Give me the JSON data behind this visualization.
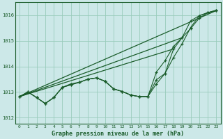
{
  "title": "Graphe pression niveau de la mer (hPa)",
  "background_color": "#cce8e8",
  "grid_color": "#99ccbb",
  "line_color": "#1a5c2a",
  "marker_color": "#1a5c2a",
  "xlim": [
    -0.5,
    23.5
  ],
  "ylim": [
    1011.75,
    1016.5
  ],
  "yticks": [
    1012,
    1013,
    1014,
    1015,
    1016
  ],
  "xticks": [
    0,
    1,
    2,
    3,
    4,
    5,
    6,
    7,
    8,
    9,
    10,
    11,
    12,
    13,
    14,
    15,
    16,
    17,
    18,
    19,
    20,
    21,
    22,
    23
  ],
  "series_with_markers": [
    [
      1012.82,
      1013.0,
      1012.78,
      1012.55,
      1012.78,
      1013.18,
      1013.28,
      1013.38,
      1013.5,
      1013.55,
      1013.42,
      1013.12,
      1013.02,
      1012.88,
      1012.82,
      1012.82,
      1013.32,
      1013.72,
      1014.35,
      1014.88,
      1015.52,
      1015.98,
      1016.1,
      1016.2
    ],
    [
      1012.82,
      1013.0,
      1012.78,
      1012.55,
      1012.78,
      1013.18,
      1013.32,
      1013.38,
      1013.5,
      1013.55,
      1013.42,
      1013.12,
      1013.02,
      1012.88,
      1012.82,
      1012.82,
      1013.78,
      1014.22,
      1014.78,
      1015.12,
      1015.48,
      1015.88,
      1016.1,
      1016.18
    ],
    [
      1012.82,
      1013.0,
      1012.78,
      1012.55,
      1012.78,
      1013.18,
      1013.28,
      1013.38,
      1013.5,
      1013.55,
      1013.42,
      1013.12,
      1013.02,
      1012.88,
      1012.82,
      1012.82,
      1013.48,
      1013.72,
      1014.68,
      1015.12,
      1015.78,
      1015.98,
      1016.1,
      1016.18
    ]
  ],
  "straight_lines": [
    [
      [
        0,
        1012.82
      ],
      [
        23,
        1016.18
      ]
    ],
    [
      [
        0,
        1012.82
      ],
      [
        19,
        1015.12
      ]
    ],
    [
      [
        0,
        1012.82
      ],
      [
        18,
        1014.68
      ]
    ]
  ]
}
